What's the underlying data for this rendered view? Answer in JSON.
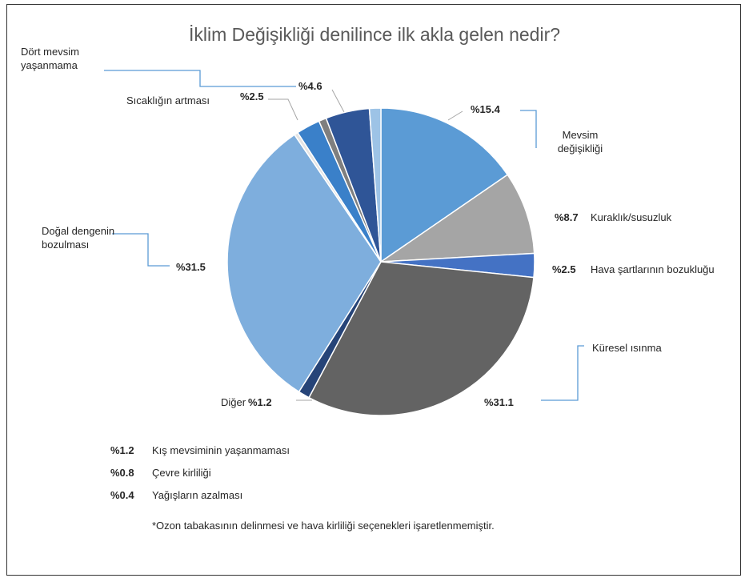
{
  "chart_data": {
    "type": "pie",
    "title": "İklim Değişikliği denilince ilk akla gelen nedir?",
    "categories": [
      "Mevsim değişikliği",
      "Kuraklık/susuzluk",
      "Hava şartlarının bozukluğu",
      "Küresel ısınma",
      "Diğer",
      "Doğal dengenin bozulması",
      "Yağışların azalması",
      "Sıcaklığın artması",
      "Çevre kirliliği",
      "Dört mevsim yaşanmama",
      "Kış mevsiminin yaşanmaması"
    ],
    "values": [
      15.4,
      8.7,
      2.5,
      31.1,
      1.2,
      31.5,
      0.4,
      2.5,
      0.8,
      4.6,
      1.2
    ],
    "value_labels": [
      "%15.4",
      "%8.7",
      "%2.5",
      "%31.1",
      "%1.2",
      "%31.5",
      "%0.4",
      "%2.5",
      "%0.8",
      "%4.6",
      "%1.2"
    ],
    "colors": [
      "#5b9bd5",
      "#a5a5a5",
      "#4472c4",
      "#636363",
      "#264478",
      "#7eaedd",
      "#e4e4e4",
      "#3a80c9",
      "#7f7f7f",
      "#2f5597",
      "#9dc3e6"
    ],
    "footnote": "*Ozon tabakasının delinmesi ve hava kirliliği seçenekleri işaretlenmemiştir."
  }
}
